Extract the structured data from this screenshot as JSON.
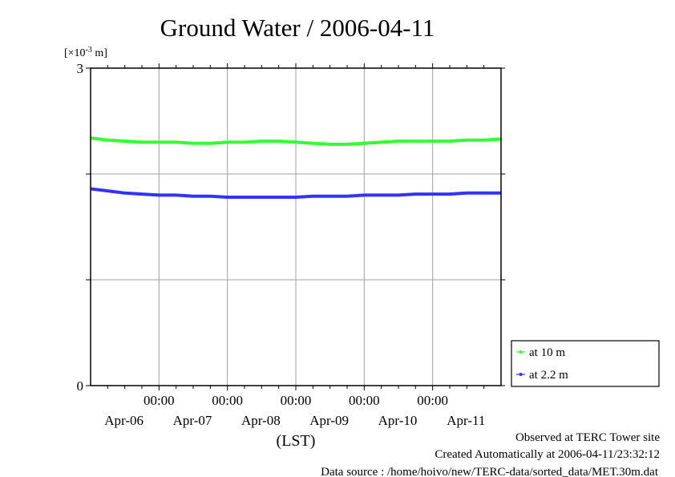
{
  "chart_data": {
    "type": "line",
    "title": "Ground Water / 2006-04-11",
    "ylabel_unit": "[×10^-3 m]",
    "unit_prefix": "[×10",
    "unit_exp": "-3",
    "unit_suffix": " m]",
    "xlabel": "(LST)",
    "ylim": [
      0,
      3
    ],
    "y_ticks_labeled": [
      "0",
      "3"
    ],
    "y_gridlines": [
      1,
      2
    ],
    "x_range_hours": [
      0,
      144
    ],
    "x_start": "2006-04-06 00:00",
    "x_time_labels": [
      "00:00",
      "00:00",
      "00:00",
      "00:00",
      "00:00"
    ],
    "x_time_label_hours": [
      24,
      48,
      72,
      96,
      120
    ],
    "x_date_labels": [
      "Apr-06",
      "Apr-07",
      "Apr-08",
      "Apr-09",
      "Apr-10",
      "Apr-11"
    ],
    "x_minor_tick_interval_hours": 6,
    "grid": true,
    "legend_position": "right-bottom",
    "series": [
      {
        "name": "at 10 m",
        "color": "#33ff33",
        "x_hours": [
          0,
          6,
          12,
          18,
          24,
          30,
          36,
          42,
          48,
          54,
          60,
          66,
          72,
          78,
          84,
          90,
          96,
          102,
          108,
          114,
          120,
          126,
          132,
          138,
          144
        ],
        "values": [
          2.34,
          2.32,
          2.31,
          2.3,
          2.3,
          2.3,
          2.29,
          2.29,
          2.3,
          2.3,
          2.31,
          2.31,
          2.3,
          2.29,
          2.28,
          2.28,
          2.29,
          2.3,
          2.31,
          2.31,
          2.31,
          2.31,
          2.32,
          2.32,
          2.33
        ]
      },
      {
        "name": "at 2.2 m",
        "color": "#3333ff",
        "x_hours": [
          0,
          6,
          12,
          18,
          24,
          30,
          36,
          42,
          48,
          54,
          60,
          66,
          72,
          78,
          84,
          90,
          96,
          102,
          108,
          114,
          120,
          126,
          132,
          138,
          144
        ],
        "values": [
          1.86,
          1.84,
          1.82,
          1.81,
          1.8,
          1.8,
          1.79,
          1.79,
          1.78,
          1.78,
          1.78,
          1.78,
          1.78,
          1.79,
          1.79,
          1.79,
          1.8,
          1.8,
          1.8,
          1.81,
          1.81,
          1.81,
          1.82,
          1.82,
          1.82
        ]
      }
    ]
  },
  "footer": {
    "observed": "Observed at TERC Tower site",
    "created": "Created Automatically at 2006-04-11/23:32:12",
    "source": "Data source : /home/hoivo/new/TERC-data/sorted_data/MET.30m.dat"
  }
}
